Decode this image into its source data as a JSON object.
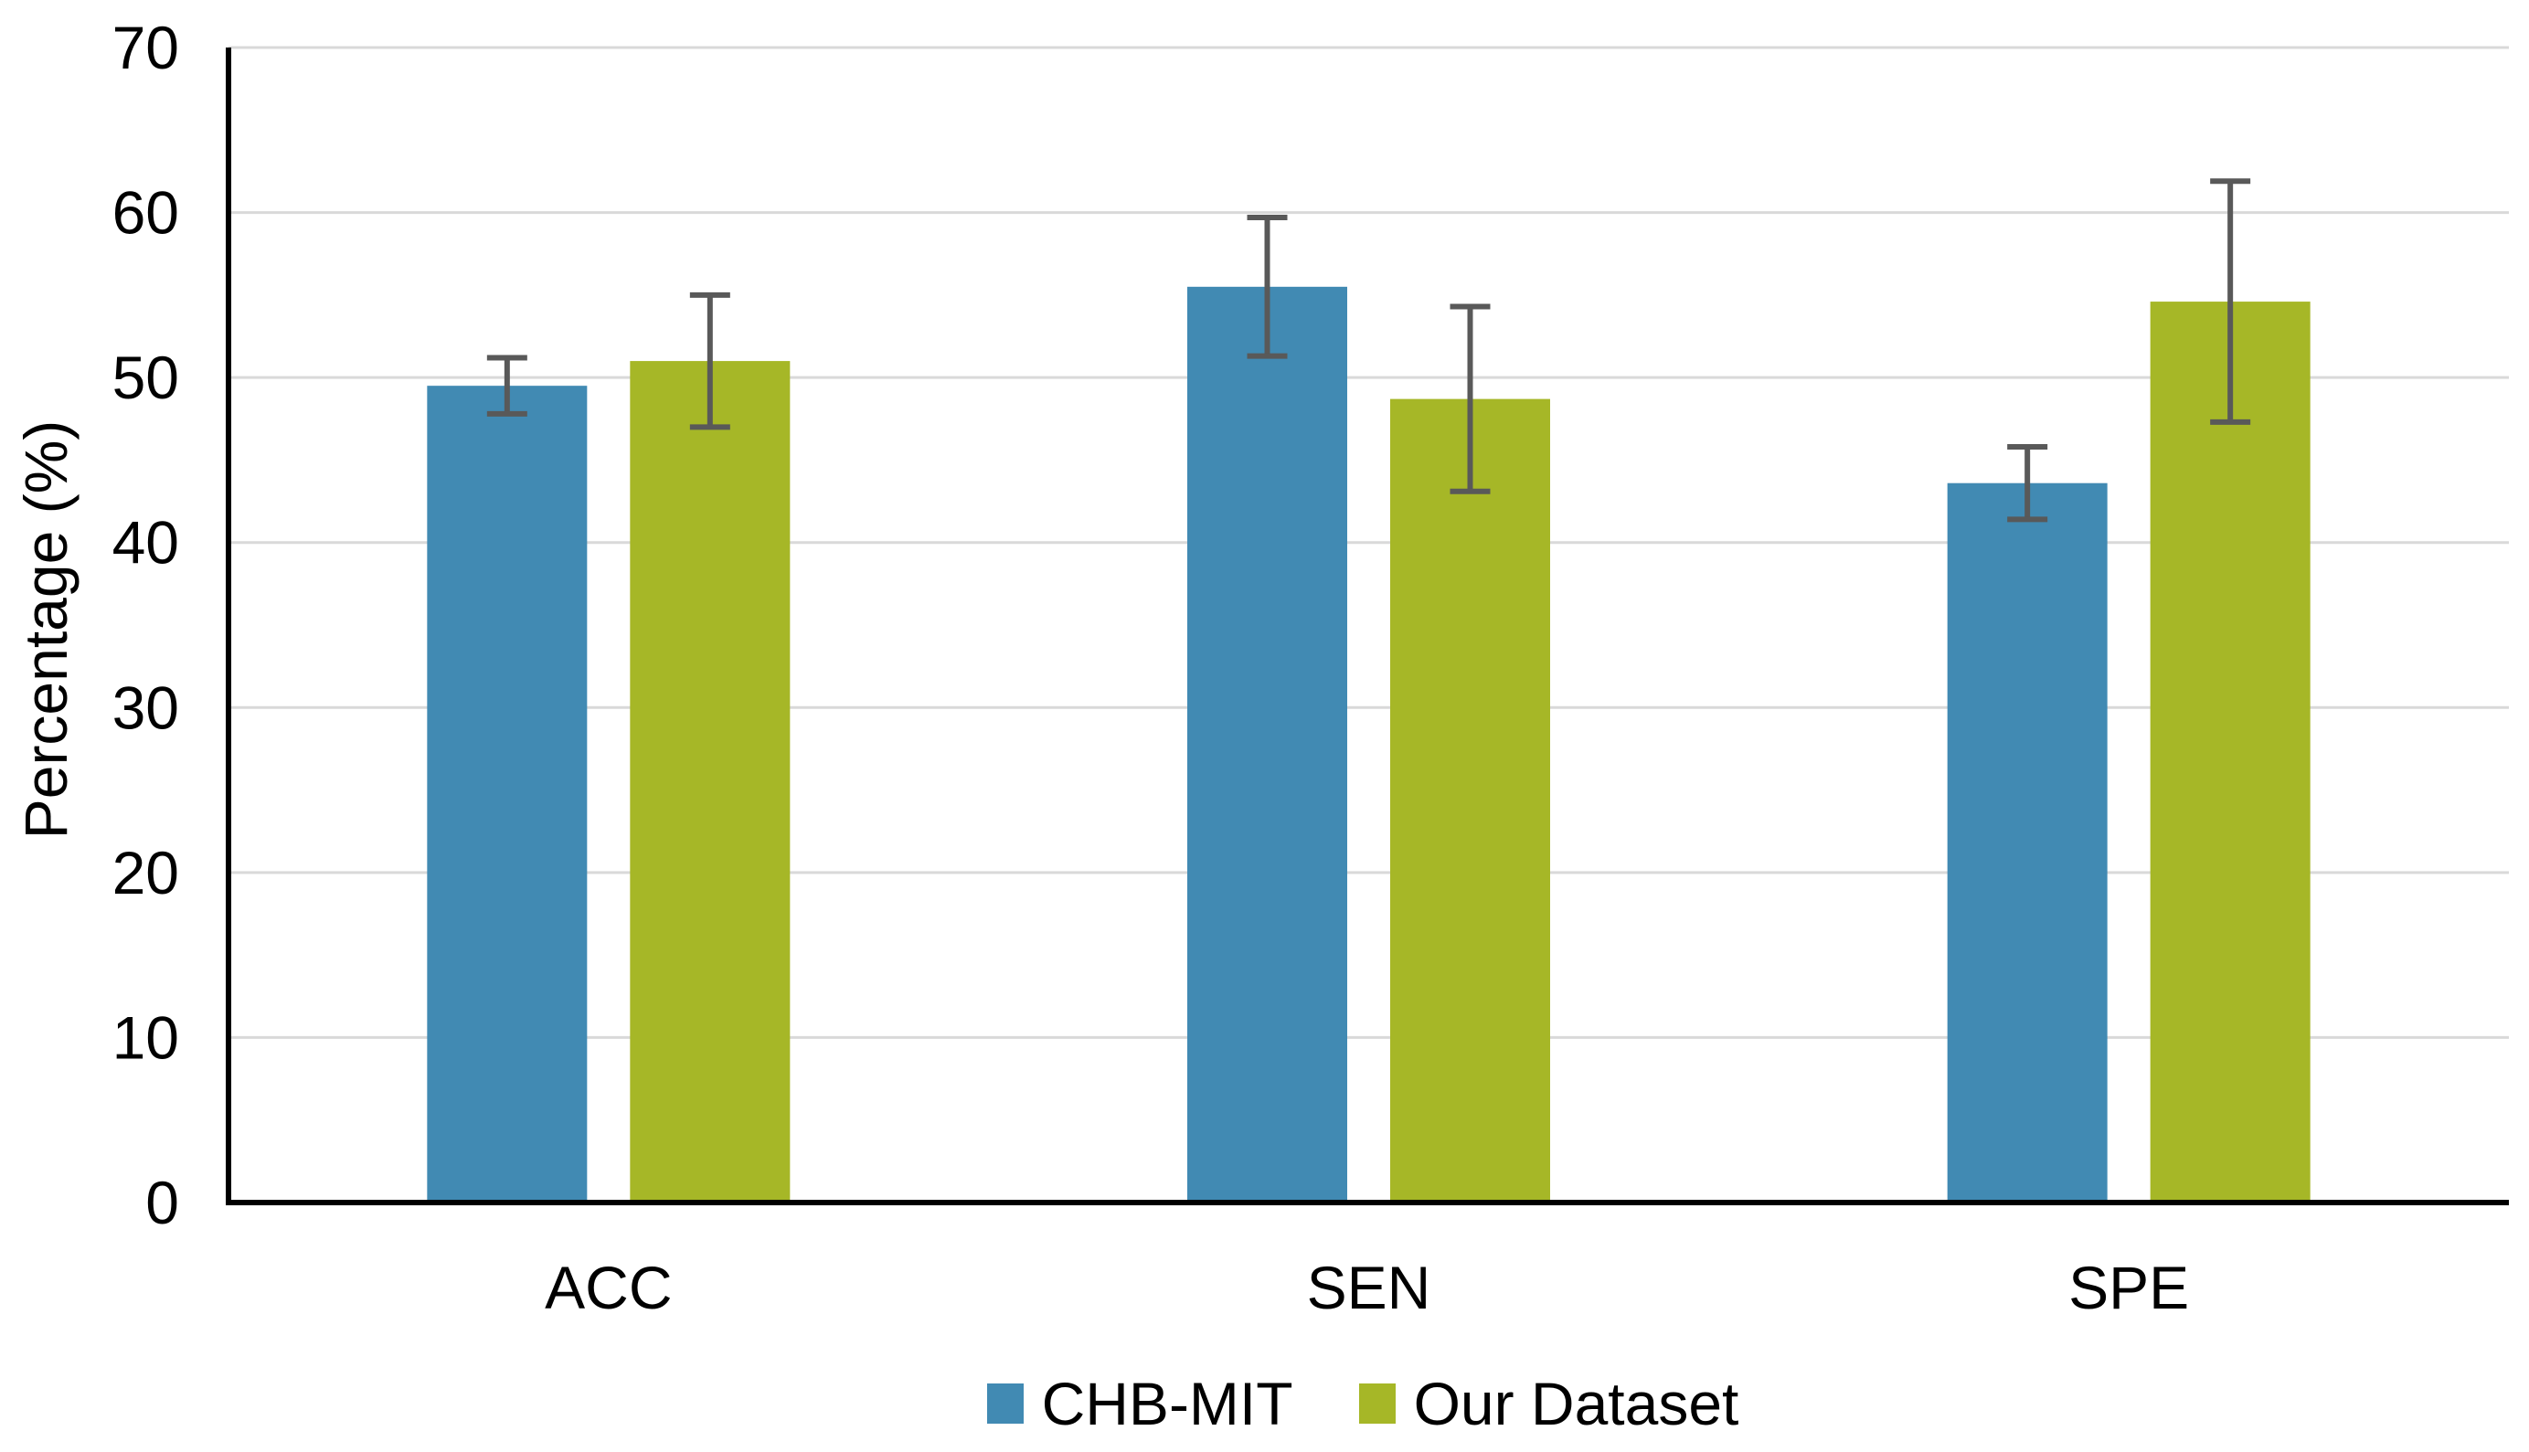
{
  "chart_data": {
    "type": "bar",
    "title": "",
    "categories": [
      "ACC",
      "SEN",
      "SPE"
    ],
    "series": [
      {
        "name": "CHB-MIT",
        "color": "#418AB3",
        "values": [
          49.5,
          55.5,
          43.6
        ],
        "errors": [
          1.7,
          4.2,
          2.2
        ]
      },
      {
        "name": "Our Dataset",
        "color": "#A6B727",
        "values": [
          51.0,
          48.7,
          54.6
        ],
        "errors": [
          4.0,
          5.6,
          7.3
        ]
      }
    ],
    "xlabel": "",
    "ylabel": "Percentage (%)",
    "ylim": [
      0,
      70
    ],
    "ytick_step": 10,
    "ytick_labels": [
      "0",
      "10",
      "20",
      "30",
      "40",
      "50",
      "60",
      "70"
    ],
    "grid": true,
    "legend_position": "bottom",
    "colors": {
      "gridline": "#D9D9D9",
      "axis": "#000000",
      "error_bar": "#595959",
      "text": "#000000",
      "background": "#FFFFFF"
    }
  }
}
